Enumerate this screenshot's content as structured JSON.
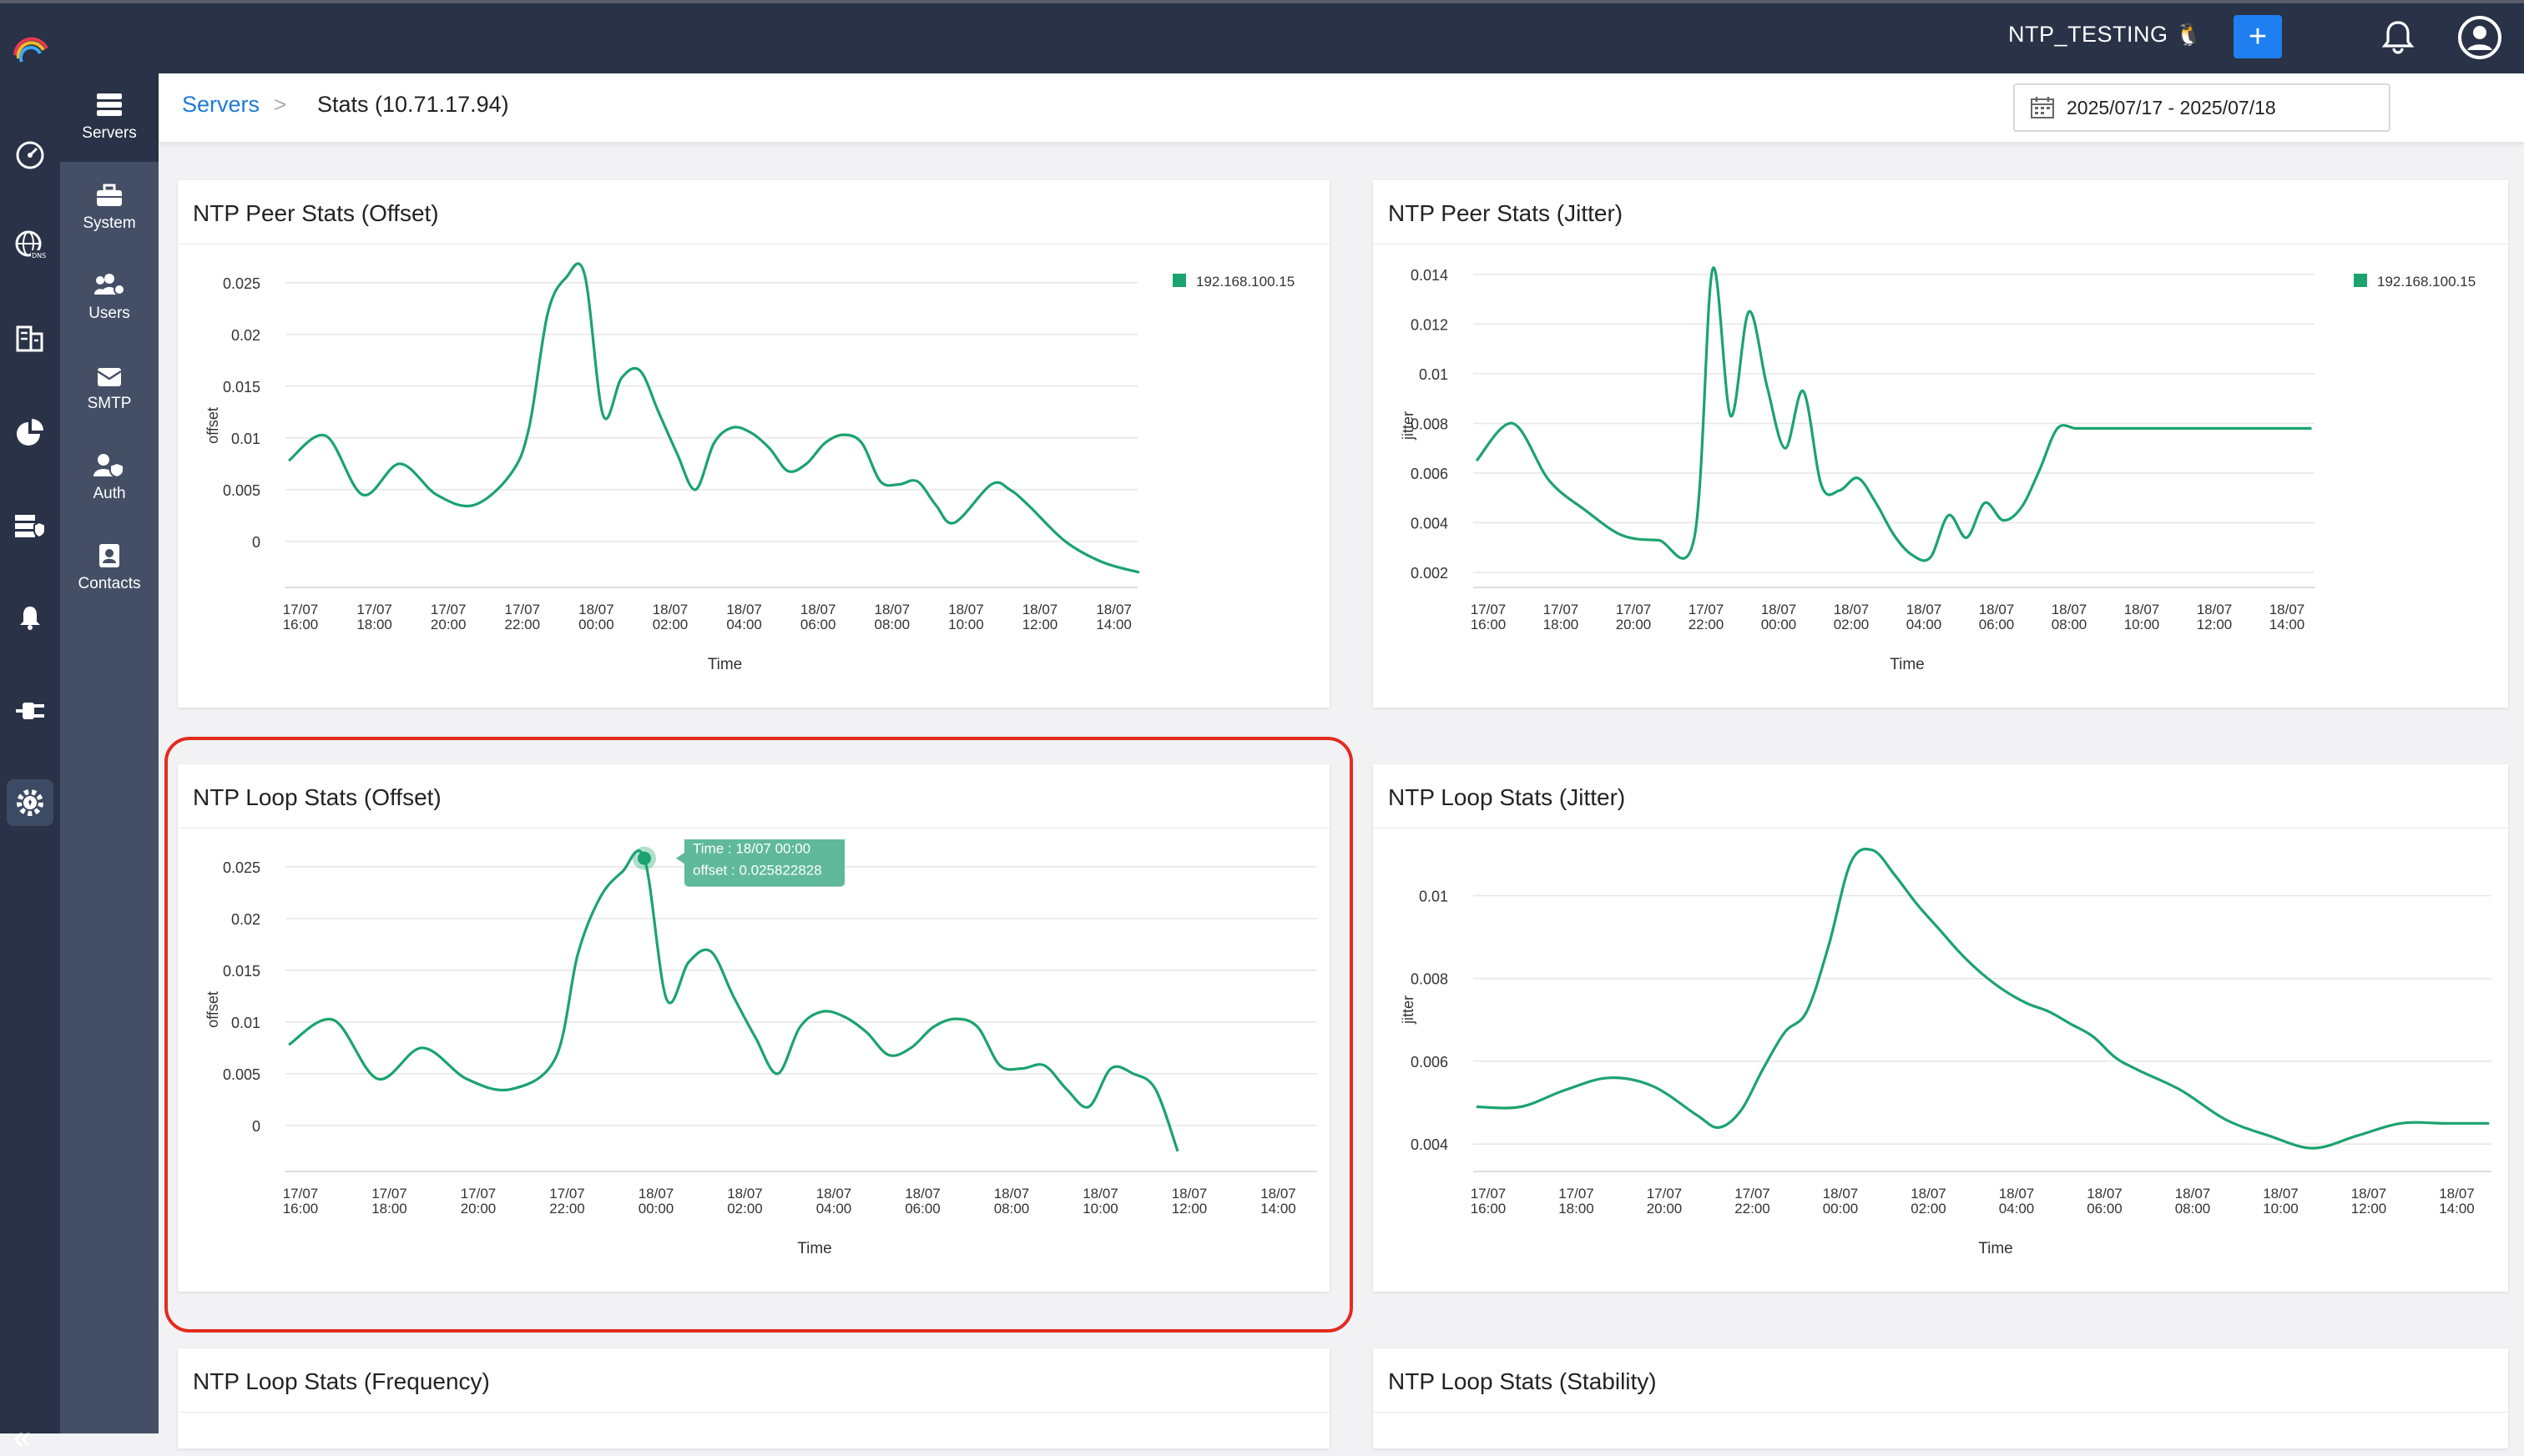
{
  "topbar": {
    "environment": "NTP_TESTING",
    "env_icon": "linux-tux-icon",
    "add_label": "+"
  },
  "breadcrumb": {
    "servers": "Servers",
    "separator": ">",
    "current": "Stats (10.71.17.94)"
  },
  "date_range": "2025/07/17 - 2025/07/18",
  "sidebar_icons": [
    "dashboard-icon",
    "dns-globe-icon",
    "inventory-icon",
    "reports-pie-icon",
    "secure-server-icon",
    "alerts-bell-icon",
    "plugin-icon",
    "admin-settings-icon"
  ],
  "submenu": [
    {
      "label": "Servers",
      "icon": "servers-icon"
    },
    {
      "label": "System",
      "icon": "toolbox-icon"
    },
    {
      "label": "Users",
      "icon": "users-gear-icon"
    },
    {
      "label": "SMTP",
      "icon": "mail-icon"
    },
    {
      "label": "Auth",
      "icon": "user-shield-icon"
    },
    {
      "label": "Contacts",
      "icon": "contact-card-icon"
    }
  ],
  "colors": {
    "line": "#1ba36f",
    "accent": "#1f7ff0",
    "highlight": "#e32b20",
    "nav": "#293246"
  },
  "cards": [
    {
      "title": "NTP Peer Stats (Offset)"
    },
    {
      "title": "NTP Peer Stats (Jitter)"
    },
    {
      "title": "NTP Loop Stats (Offset)"
    },
    {
      "title": "NTP Loop Stats (Jitter)"
    },
    {
      "title": "NTP Loop Stats (Frequency)"
    },
    {
      "title": "NTP Loop Stats (Stability)"
    }
  ],
  "chart_data": [
    {
      "type": "line",
      "title": "NTP Peer Stats (Offset)",
      "xlabel": "Time",
      "ylabel": "offset",
      "legend": [
        "192.168.100.15"
      ],
      "legend_position": "top-right",
      "x_ticks": [
        "17/07 16:00",
        "17/07 18:00",
        "17/07 20:00",
        "17/07 22:00",
        "18/07 00:00",
        "18/07 02:00",
        "18/07 04:00",
        "18/07 06:00",
        "18/07 08:00",
        "18/07 10:00",
        "18/07 12:00",
        "18/07 14:00"
      ],
      "y_ticks": [
        "0.025",
        "0.02",
        "0.015",
        "0.01",
        "0.005",
        "0"
      ],
      "ylim": [
        -0.003,
        0.027
      ],
      "series": [
        {
          "name": "192.168.100.15",
          "x": [
            16,
            17,
            18,
            19,
            20,
            21,
            22,
            22.5,
            23,
            23.5,
            24,
            24.5,
            25,
            25.5,
            26,
            26.5,
            27,
            27.5,
            28,
            28.5,
            29,
            29.5,
            30,
            30.5,
            31,
            31.5,
            32,
            32.5,
            33,
            33.5,
            34,
            35,
            35.5,
            36,
            37,
            38,
            39,
            40,
            41
          ],
          "y": [
            0.0078,
            0.0102,
            0.0045,
            0.0075,
            0.0045,
            0.0035,
            0.0065,
            0.011,
            0.022,
            0.0255,
            0.0258,
            0.0122,
            0.0158,
            0.0165,
            0.0125,
            0.0085,
            0.005,
            0.0095,
            0.011,
            0.0105,
            0.009,
            0.0068,
            0.0075,
            0.0095,
            0.0103,
            0.0095,
            0.0058,
            0.0055,
            0.0058,
            0.0035,
            0.0018,
            0.0055,
            0.005,
            0.0035,
            0.0,
            -0.002,
            -0.003,
            -0.003,
            -0.003
          ]
        }
      ]
    },
    {
      "type": "line",
      "title": "NTP Peer Stats (Jitter)",
      "xlabel": "Time",
      "ylabel": "jitter",
      "legend": [
        "192.168.100.15"
      ],
      "legend_position": "top-right",
      "x_ticks": [
        "17/07 16:00",
        "17/07 18:00",
        "17/07 20:00",
        "17/07 22:00",
        "18/07 00:00",
        "18/07 02:00",
        "18/07 04:00",
        "18/07 06:00",
        "18/07 08:00",
        "18/07 10:00",
        "18/07 12:00",
        "18/07 14:00"
      ],
      "y_ticks": [
        "0.014",
        "0.012",
        "0.01",
        "0.008",
        "0.006",
        "0.004",
        "0.002"
      ],
      "ylim": [
        0.002,
        0.0145
      ],
      "series": [
        {
          "name": "192.168.100.15",
          "x": [
            16,
            17,
            18,
            19,
            20,
            21,
            22,
            22.5,
            23,
            23.5,
            24,
            24.5,
            25,
            25.5,
            26,
            26.5,
            27,
            27.5,
            28,
            28.5,
            29,
            29.5,
            30,
            30.5,
            31,
            31.5,
            32,
            32.5,
            33,
            33.5,
            34,
            34.5,
            35,
            35.5,
            36,
            36.5,
            37,
            38,
            39,
            40,
            41
          ],
          "y": [
            0.0065,
            0.008,
            0.0057,
            0.0045,
            0.0035,
            0.0033,
            0.0034,
            0.0142,
            0.0083,
            0.0125,
            0.0095,
            0.007,
            0.0093,
            0.0055,
            0.0053,
            0.0058,
            0.0048,
            0.0035,
            0.0027,
            0.0026,
            0.0043,
            0.0034,
            0.0048,
            0.0041,
            0.0046,
            0.0061,
            0.0078,
            0.0078,
            0.0078,
            0.0078,
            0.0078,
            0.0078,
            0.0078,
            0.0078,
            0.0078,
            0.0078,
            0.0078,
            0.0078,
            0.0078,
            0.0078,
            0.0078
          ]
        }
      ]
    },
    {
      "type": "line",
      "title": "NTP Loop Stats (Offset)",
      "xlabel": "Time",
      "ylabel": "offset",
      "x_ticks": [
        "17/07 16:00",
        "17/07 18:00",
        "17/07 20:00",
        "17/07 22:00",
        "18/07 00:00",
        "18/07 02:00",
        "18/07 04:00",
        "18/07 06:00",
        "18/07 08:00",
        "18/07 10:00",
        "18/07 12:00",
        "18/07 14:00"
      ],
      "y_ticks": [
        "0.025",
        "0.02",
        "0.015",
        "0.01",
        "0.005",
        "0"
      ],
      "ylim": [
        -0.003,
        0.027
      ],
      "tooltip": {
        "time_label": "Time : 18/07 00:00",
        "value_label": "offset : 0.025822828",
        "x": 24,
        "y": 0.025822828
      },
      "series": [
        {
          "name": "offset",
          "x": [
            16,
            17,
            18,
            19,
            20,
            21,
            22,
            22.5,
            23,
            23.5,
            24,
            24.5,
            25,
            25.5,
            26,
            26.5,
            27,
            27.5,
            28,
            28.5,
            29,
            29.5,
            30,
            30.5,
            31,
            31.5,
            32,
            32.5,
            33,
            33.5,
            34,
            34.5,
            35,
            35.5,
            36
          ],
          "y": [
            0.0078,
            0.0102,
            0.0045,
            0.0075,
            0.0045,
            0.0035,
            0.0065,
            0.0165,
            0.022,
            0.0245,
            0.0258,
            0.0122,
            0.0158,
            0.0168,
            0.0125,
            0.0085,
            0.005,
            0.0095,
            0.011,
            0.0105,
            0.009,
            0.0068,
            0.0075,
            0.0095,
            0.0103,
            0.0095,
            0.0058,
            0.0055,
            0.0058,
            0.0035,
            0.0018,
            0.0055,
            0.005,
            0.0035,
            -0.0025
          ]
        }
      ]
    },
    {
      "type": "line",
      "title": "NTP Loop Stats (Jitter)",
      "xlabel": "Time",
      "ylabel": "jitter",
      "x_ticks": [
        "17/07 16:00",
        "17/07 18:00",
        "17/07 20:00",
        "17/07 22:00",
        "18/07 00:00",
        "18/07 02:00",
        "18/07 04:00",
        "18/07 06:00",
        "18/07 08:00",
        "18/07 10:00",
        "18/07 12:00",
        "18/07 14:00"
      ],
      "y_ticks": [
        "0.01",
        "0.008",
        "0.006",
        "0.004"
      ],
      "ylim": [
        0.0037,
        0.0112
      ],
      "series": [
        {
          "name": "jitter",
          "x": [
            16,
            17,
            18,
            19,
            20,
            21,
            21.5,
            22,
            22.5,
            23,
            23.5,
            24,
            24.5,
            25,
            25.5,
            26,
            26.5,
            27,
            27.5,
            28,
            28.5,
            29,
            29.5,
            30,
            30.5,
            31,
            32,
            33,
            34,
            35,
            36,
            37,
            38,
            39,
            40,
            41
          ],
          "y": [
            0.0049,
            0.0049,
            0.0053,
            0.0056,
            0.0054,
            0.0047,
            0.0044,
            0.0048,
            0.0058,
            0.0067,
            0.0072,
            0.0088,
            0.0108,
            0.0111,
            0.0105,
            0.0098,
            0.0092,
            0.0086,
            0.0081,
            0.0077,
            0.0074,
            0.0072,
            0.0069,
            0.0066,
            0.0061,
            0.0058,
            0.0053,
            0.0046,
            0.0042,
            0.0039,
            0.0042,
            0.0045,
            0.0045,
            0.0045,
            0.0045,
            0.0045
          ]
        }
      ]
    }
  ]
}
